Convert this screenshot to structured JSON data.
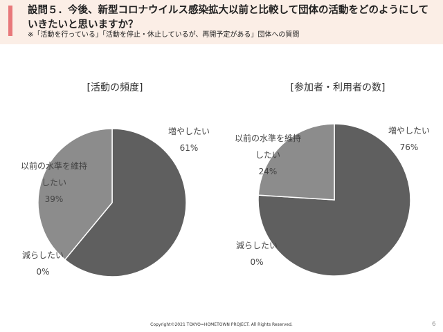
{
  "header": {
    "title": "設問５．今後、新型コロナウイルス感染拡大以前と比較して団体の活動をどのようにしていきたいと思いますか？",
    "subtitle": "※「活動を行っている」「活動を停止・休止しているが、再開予定がある」団体への質問"
  },
  "footer": {
    "copyright": "Copyright©2021  TOKYO=HOMETOWN PROJECT.  All Rights  Reserved.",
    "page_number": "6"
  },
  "colors": {
    "header_bg": "#fbeee6",
    "accent": "#e8787a",
    "slice_increase": "#5f5f5f",
    "slice_maintain": "#8c8c8c",
    "slice_decrease": "#3a3a3a"
  },
  "chart_data": [
    {
      "type": "pie",
      "title": "[活動の頻度]",
      "categories": [
        "増やしたい",
        "以前の水準を維持したい",
        "減らしたい"
      ],
      "label_lines": [
        [
          "増やしたい"
        ],
        [
          "以前の水準を維持",
          "したい"
        ],
        [
          "減らしたい"
        ]
      ],
      "percent_labels": [
        "61%",
        "39%",
        "0%"
      ],
      "values": [
        61,
        39,
        0
      ]
    },
    {
      "type": "pie",
      "title": "[参加者・利用者の数]",
      "categories": [
        "増やしたい",
        "以前の水準を維持したい",
        "減らしたい"
      ],
      "label_lines": [
        [
          "増やしたい"
        ],
        [
          "以前の水準を維持",
          "したい"
        ],
        [
          "減らしたい"
        ]
      ],
      "percent_labels": [
        "76%",
        "24%",
        "0%"
      ],
      "values": [
        76,
        24,
        0
      ]
    }
  ]
}
